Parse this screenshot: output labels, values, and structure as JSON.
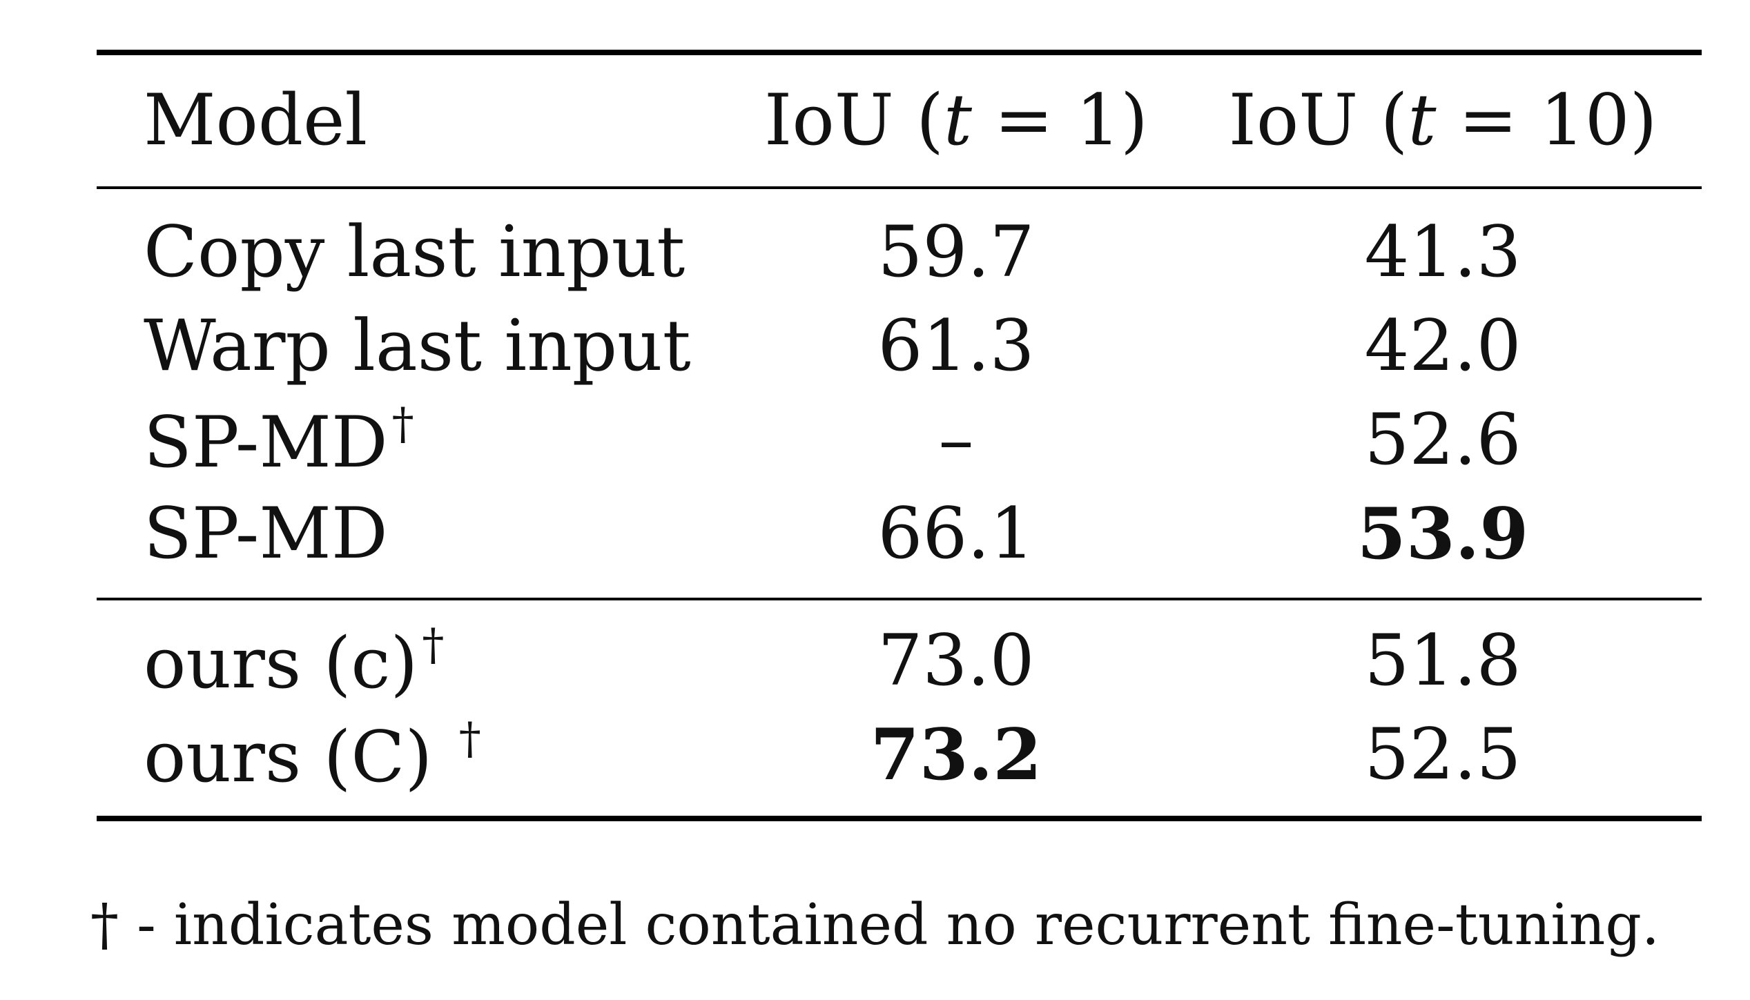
{
  "table": {
    "headers": {
      "model": "Model",
      "iou1_prefix": "IoU (",
      "iou1_var": "t",
      "iou1_suffix": " = 1)",
      "iou10_prefix": "IoU (",
      "iou10_var": "t",
      "iou10_suffix": " = 10)"
    },
    "group1": [
      {
        "model": "Copy last input",
        "dagger": "",
        "iou1": "59.7",
        "iou10": "41.3",
        "bold_iou1": false,
        "bold_iou10": false
      },
      {
        "model": "Warp last input",
        "dagger": "",
        "iou1": "61.3",
        "iou10": "42.0",
        "bold_iou1": false,
        "bold_iou10": false
      },
      {
        "model": "SP-MD",
        "dagger": "†",
        "iou1": "–",
        "iou10": "52.6",
        "bold_iou1": false,
        "bold_iou10": false
      },
      {
        "model": "SP-MD",
        "dagger": "",
        "iou1": "66.1",
        "iou10": "53.9",
        "bold_iou1": false,
        "bold_iou10": true
      }
    ],
    "group2": [
      {
        "model": "ours (c)",
        "dagger": "†",
        "iou1": "73.0",
        "iou10": "51.8",
        "bold_iou1": false,
        "bold_iou10": false
      },
      {
        "model": "ours (C) ",
        "dagger": "†",
        "iou1": "73.2",
        "iou10": "52.5",
        "bold_iou1": true,
        "bold_iou10": false
      }
    ]
  },
  "footnote": "† - indicates model contained no recurrent fine-tuning."
}
